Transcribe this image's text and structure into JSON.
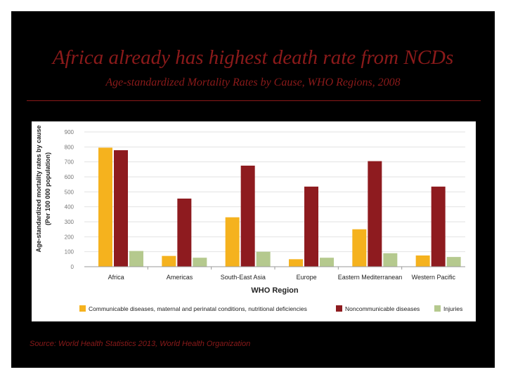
{
  "slide": {
    "title": "Africa already has highest death rate from NCDs",
    "subtitle": "Age-standardized Mortality Rates by Cause, WHO Regions, 2008",
    "source": "Source:  World Health Statistics 2013, World Health Organization"
  },
  "colors": {
    "background": "#000000",
    "title_text": "#8b1a1a",
    "communicable": "#f5b21e",
    "noncommunicable": "#8e1b1f",
    "injuries": "#b5c98e"
  },
  "chart_data": {
    "type": "bar",
    "categories": [
      "Africa",
      "Americas",
      "South-East Asia",
      "Europe",
      "Eastern Mediterranean",
      "Western Pacific"
    ],
    "series": [
      {
        "name": "Communicable diseases, maternal and perinatal conditions, nutritional deficiencies",
        "color": "#f5b21e",
        "values": [
          795,
          72,
          330,
          50,
          250,
          75
        ]
      },
      {
        "name": "Noncommunicable diseases",
        "color": "#8e1b1f",
        "values": [
          778,
          455,
          675,
          535,
          705,
          535
        ]
      },
      {
        "name": "Injuries",
        "color": "#b5c98e",
        "values": [
          105,
          60,
          100,
          60,
          90,
          65
        ]
      }
    ],
    "xlabel": "WHO Region",
    "ylabel_line1": "Age-standardized mortality rates by cause",
    "ylabel_line2": "(Per 100 000 population)",
    "ylim": [
      0,
      900
    ],
    "yticks": [
      "0",
      "100",
      "200",
      "300",
      "400",
      "500",
      "600",
      "700",
      "800",
      "900"
    ],
    "grid": true,
    "legend_position": "bottom"
  }
}
